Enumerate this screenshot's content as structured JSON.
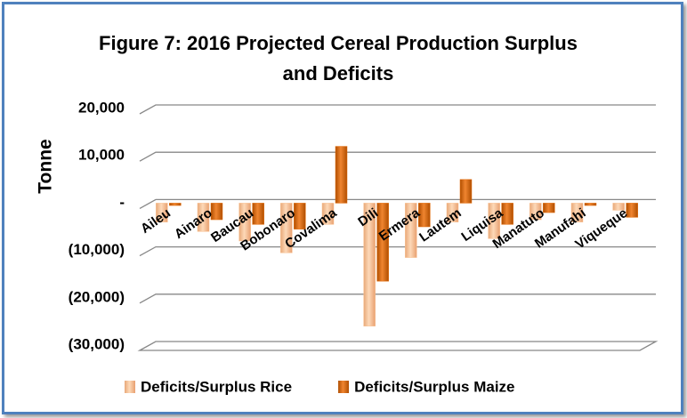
{
  "chart_data": {
    "type": "bar",
    "title": "Figure 7: 2016 Projected Cereal Production Surplus and Deficits",
    "y_label": "Tonne",
    "categories": [
      "Aileu",
      "Ainaro",
      "Baucau",
      "Bobonaro",
      "Covalima",
      "Dili",
      "Ermera",
      "Lautem",
      "Liquisa",
      "Manatuto",
      "Manufahi",
      "Viqueque"
    ],
    "series": [
      {
        "name": "Deficits/Surplus Rice",
        "color": "#fac090",
        "values": [
          -4000,
          -6000,
          -8000,
          -10500,
          -4500,
          -26000,
          -11500,
          -4000,
          -7500,
          -3500,
          -4000,
          -1500
        ]
      },
      {
        "name": "Deficits/Surplus Maize",
        "color": "#e46c0a",
        "values": [
          -500,
          -3500,
          -4500,
          -5500,
          12000,
          -16500,
          -5000,
          5000,
          -4500,
          -2000,
          -500,
          -3000
        ]
      }
    ],
    "ylim": [
      -30000,
      20000
    ],
    "yticks": [
      {
        "value": -30000,
        "label": "(30,000)"
      },
      {
        "value": -20000,
        "label": "(20,000)"
      },
      {
        "value": -10000,
        "label": "(10,000)"
      },
      {
        "value": 0,
        "label": "-"
      },
      {
        "value": 10000,
        "label": "10,000"
      },
      {
        "value": 20000,
        "label": "20,000"
      }
    ],
    "grid": true,
    "legend": "bottom"
  }
}
